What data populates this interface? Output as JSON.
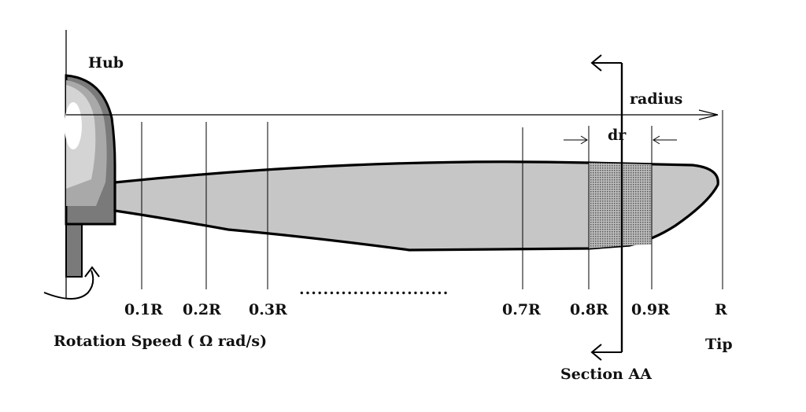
{
  "labels": {
    "hub": "Hub",
    "radius": "radius",
    "dr": "dr",
    "rotation_speed": "Rotation Speed ( Ω rad/s)",
    "tip": "Tip",
    "section": "Section AA",
    "ellipsis": "........................."
  },
  "stations": [
    "0.1R",
    "0.2R",
    "0.3R",
    "0.7R",
    "0.8R",
    "0.9R",
    "R"
  ],
  "colors": {
    "blade": "#c6c6c6",
    "hub_dark": "#7a7a7a",
    "hub_mid": "#a9a9a9",
    "hub_light": "#d4d4d4",
    "highlight": "#ffffff",
    "shaft": "#7a7a7a",
    "strip_fill": "#9a9a9a",
    "line": "#000000"
  }
}
